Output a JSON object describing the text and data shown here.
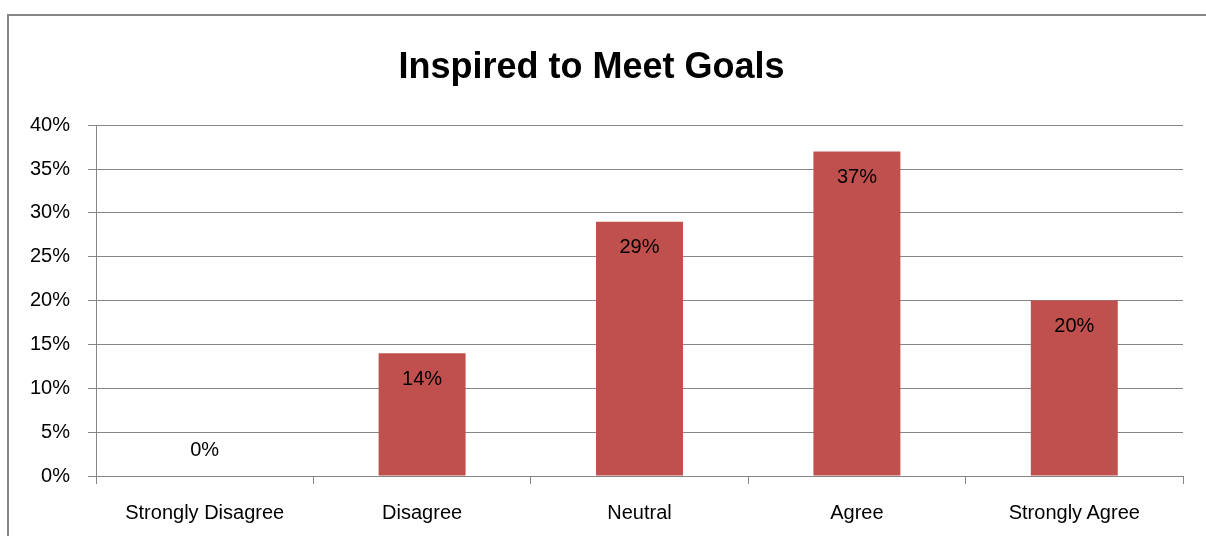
{
  "chart_data": {
    "type": "bar",
    "title": "Inspired to Meet Goals",
    "categories": [
      "Strongly Disagree",
      "Disagree",
      "Neutral",
      "Agree",
      "Strongly Agree"
    ],
    "values": [
      0,
      14,
      29,
      37,
      20
    ],
    "value_labels": [
      "0%",
      "14%",
      "29%",
      "37%",
      "20%"
    ],
    "color": "#c0504d",
    "ylim": [
      0,
      40
    ],
    "yticks": [
      {
        "value": 0,
        "label": "0%"
      },
      {
        "value": 5,
        "label": "5%"
      },
      {
        "value": 10,
        "label": "10%"
      },
      {
        "value": 15,
        "label": "15%"
      },
      {
        "value": 20,
        "label": "20%"
      },
      {
        "value": 25,
        "label": "25%"
      },
      {
        "value": 30,
        "label": "30%"
      },
      {
        "value": 35,
        "label": "35%"
      },
      {
        "value": 40,
        "label": "40%"
      }
    ],
    "grid": "y",
    "legend": false
  }
}
